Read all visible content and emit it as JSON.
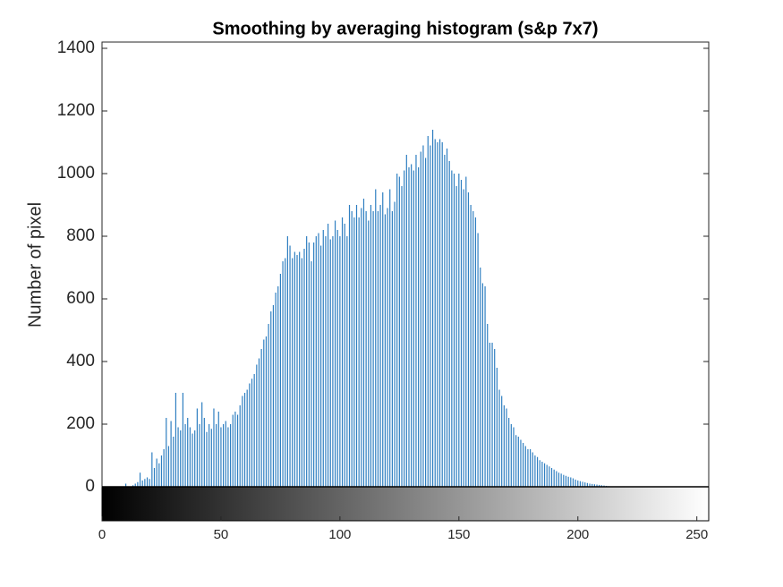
{
  "chart_data": {
    "type": "histogram",
    "title": "Smoothing by averaging histogram (s&p 7x7)",
    "y_label": "Number of pixel",
    "color": "#2f7fc1",
    "x": [
      0,
      1,
      2,
      3,
      4,
      5,
      6,
      7,
      8,
      9,
      10,
      11,
      12,
      13,
      14,
      15,
      16,
      17,
      18,
      19,
      20,
      21,
      22,
      23,
      24,
      25,
      26,
      27,
      28,
      29,
      30,
      31,
      32,
      33,
      34,
      35,
      36,
      37,
      38,
      39,
      40,
      41,
      42,
      43,
      44,
      45,
      46,
      47,
      48,
      49,
      50,
      51,
      52,
      53,
      54,
      55,
      56,
      57,
      58,
      59,
      60,
      61,
      62,
      63,
      64,
      65,
      66,
      67,
      68,
      69,
      70,
      71,
      72,
      73,
      74,
      75,
      76,
      77,
      78,
      79,
      80,
      81,
      82,
      83,
      84,
      85,
      86,
      87,
      88,
      89,
      90,
      91,
      92,
      93,
      94,
      95,
      96,
      97,
      98,
      99,
      100,
      101,
      102,
      103,
      104,
      105,
      106,
      107,
      108,
      109,
      110,
      111,
      112,
      113,
      114,
      115,
      116,
      117,
      118,
      119,
      120,
      121,
      122,
      123,
      124,
      125,
      126,
      127,
      128,
      129,
      130,
      131,
      132,
      133,
      134,
      135,
      136,
      137,
      138,
      139,
      140,
      141,
      142,
      143,
      144,
      145,
      146,
      147,
      148,
      149,
      150,
      151,
      152,
      153,
      154,
      155,
      156,
      157,
      158,
      159,
      160,
      161,
      162,
      163,
      164,
      165,
      166,
      167,
      168,
      169,
      170,
      171,
      172,
      173,
      174,
      175,
      176,
      177,
      178,
      179,
      180,
      181,
      182,
      183,
      184,
      185,
      186,
      187,
      188,
      189,
      190,
      191,
      192,
      193,
      194,
      195,
      196,
      197,
      198,
      199,
      200,
      201,
      202,
      203,
      204,
      205,
      206,
      207,
      208,
      209,
      210,
      211,
      212,
      213,
      214,
      215,
      216,
      217,
      218,
      219,
      220,
      221,
      222,
      223,
      224,
      225,
      226,
      227,
      228,
      229,
      230,
      231,
      232,
      233,
      234,
      235,
      236,
      237,
      238,
      239,
      240,
      241,
      242,
      243,
      244,
      245,
      246,
      247,
      248,
      249,
      250,
      251,
      252,
      253,
      254,
      255
    ],
    "values": [
      0,
      0,
      0,
      0,
      0,
      0,
      0,
      0,
      0,
      0,
      10,
      0,
      0,
      5,
      10,
      15,
      45,
      20,
      25,
      30,
      25,
      110,
      60,
      90,
      75,
      100,
      120,
      220,
      130,
      210,
      160,
      300,
      190,
      180,
      300,
      200,
      220,
      190,
      170,
      180,
      250,
      200,
      270,
      220,
      175,
      200,
      185,
      250,
      200,
      240,
      190,
      200,
      210,
      190,
      200,
      230,
      240,
      230,
      260,
      290,
      300,
      310,
      330,
      345,
      360,
      390,
      410,
      440,
      470,
      480,
      520,
      560,
      580,
      620,
      640,
      680,
      720,
      730,
      800,
      770,
      730,
      750,
      740,
      750,
      730,
      760,
      800,
      780,
      720,
      780,
      800,
      810,
      770,
      820,
      800,
      840,
      790,
      800,
      850,
      820,
      800,
      860,
      840,
      800,
      900,
      880,
      860,
      900,
      860,
      890,
      920,
      880,
      850,
      900,
      880,
      950,
      880,
      900,
      940,
      870,
      890,
      950,
      880,
      910,
      1000,
      990,
      960,
      1010,
      1060,
      1020,
      1030,
      1010,
      1060,
      1020,
      1070,
      1090,
      1050,
      1120,
      1090,
      1140,
      1110,
      1100,
      1110,
      1100,
      1060,
      1080,
      1040,
      1010,
      1000,
      960,
      1000,
      980,
      950,
      990,
      940,
      900,
      880,
      860,
      810,
      700,
      650,
      640,
      520,
      460,
      460,
      440,
      380,
      310,
      290,
      260,
      250,
      220,
      200,
      190,
      165,
      160,
      150,
      140,
      130,
      120,
      120,
      110,
      100,
      95,
      85,
      80,
      75,
      70,
      65,
      60,
      55,
      50,
      45,
      42,
      38,
      35,
      32,
      30,
      27,
      23,
      20,
      18,
      16,
      14,
      12,
      10,
      9,
      8,
      7,
      6,
      5,
      4,
      3,
      2,
      1,
      0,
      0,
      0,
      0,
      0,
      0,
      0,
      0,
      0,
      0,
      0,
      0,
      0,
      0,
      0,
      0,
      0,
      0,
      0,
      0,
      0,
      0,
      0,
      0,
      0,
      0,
      0,
      0,
      0,
      0,
      0,
      0,
      0,
      0,
      0,
      0,
      0,
      0,
      0,
      0,
      0
    ],
    "xlim": [
      0,
      255
    ],
    "xticks": [
      0,
      50,
      100,
      150,
      200,
      250
    ],
    "ylim": [
      0,
      1420
    ],
    "yticks": [
      0,
      200,
      400,
      600,
      800,
      1000,
      1200,
      1400
    ]
  }
}
